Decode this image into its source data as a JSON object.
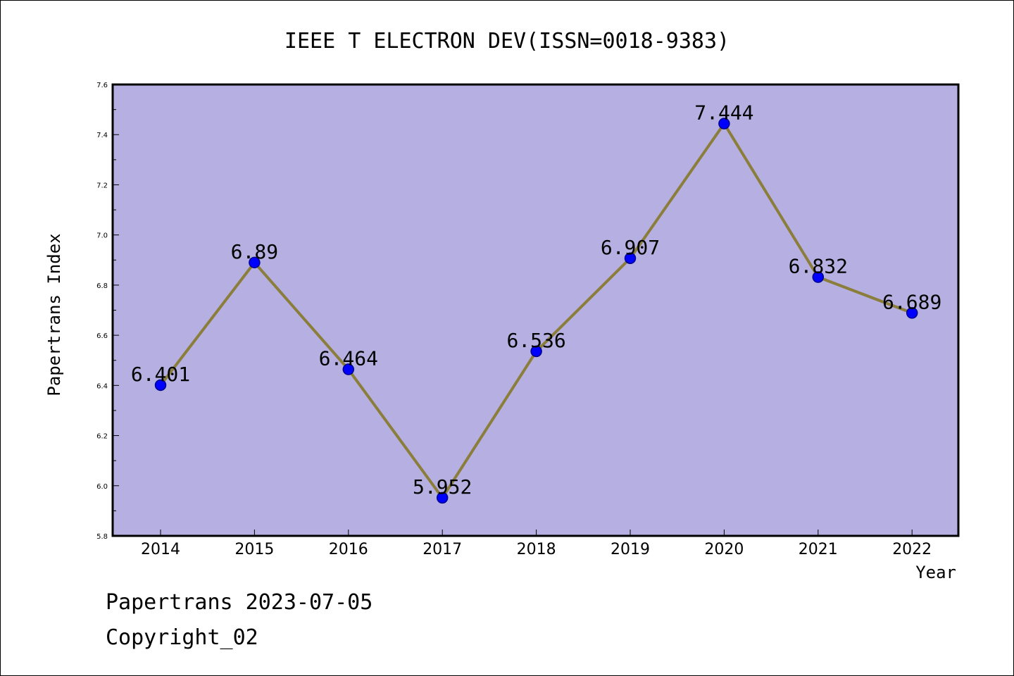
{
  "chart_data": {
    "type": "line",
    "title": "IEEE T ELECTRON DEV(ISSN=0018-9383)",
    "xlabel": "Year",
    "ylabel": "Papertrans Index",
    "categories": [
      "2014",
      "2015",
      "2016",
      "2017",
      "2018",
      "2019",
      "2020",
      "2021",
      "2022"
    ],
    "series": [
      {
        "values": [
          6.401,
          6.89,
          6.464,
          5.952,
          6.536,
          6.907,
          7.444,
          6.832,
          6.689
        ],
        "labels": [
          "6.401",
          "6.89",
          "6.464",
          "5.952",
          "6.536",
          "6.907",
          "7.444",
          "6.832",
          "6.689"
        ]
      }
    ],
    "ylim": [
      5.8,
      7.6
    ],
    "yticks": [
      "5.8",
      "6.0",
      "6.2",
      "6.4",
      "6.6",
      "6.8",
      "7.0",
      "7.2",
      "7.4",
      "7.6"
    ],
    "grid": false,
    "colors": {
      "plot_background": "#b5afe2",
      "line": "#8b7d3a",
      "marker": "#0000ff",
      "marker_edge": "#00008b"
    }
  },
  "footer": {
    "line1": "Papertrans 2023-07-05",
    "line2": "Copyright_02"
  }
}
